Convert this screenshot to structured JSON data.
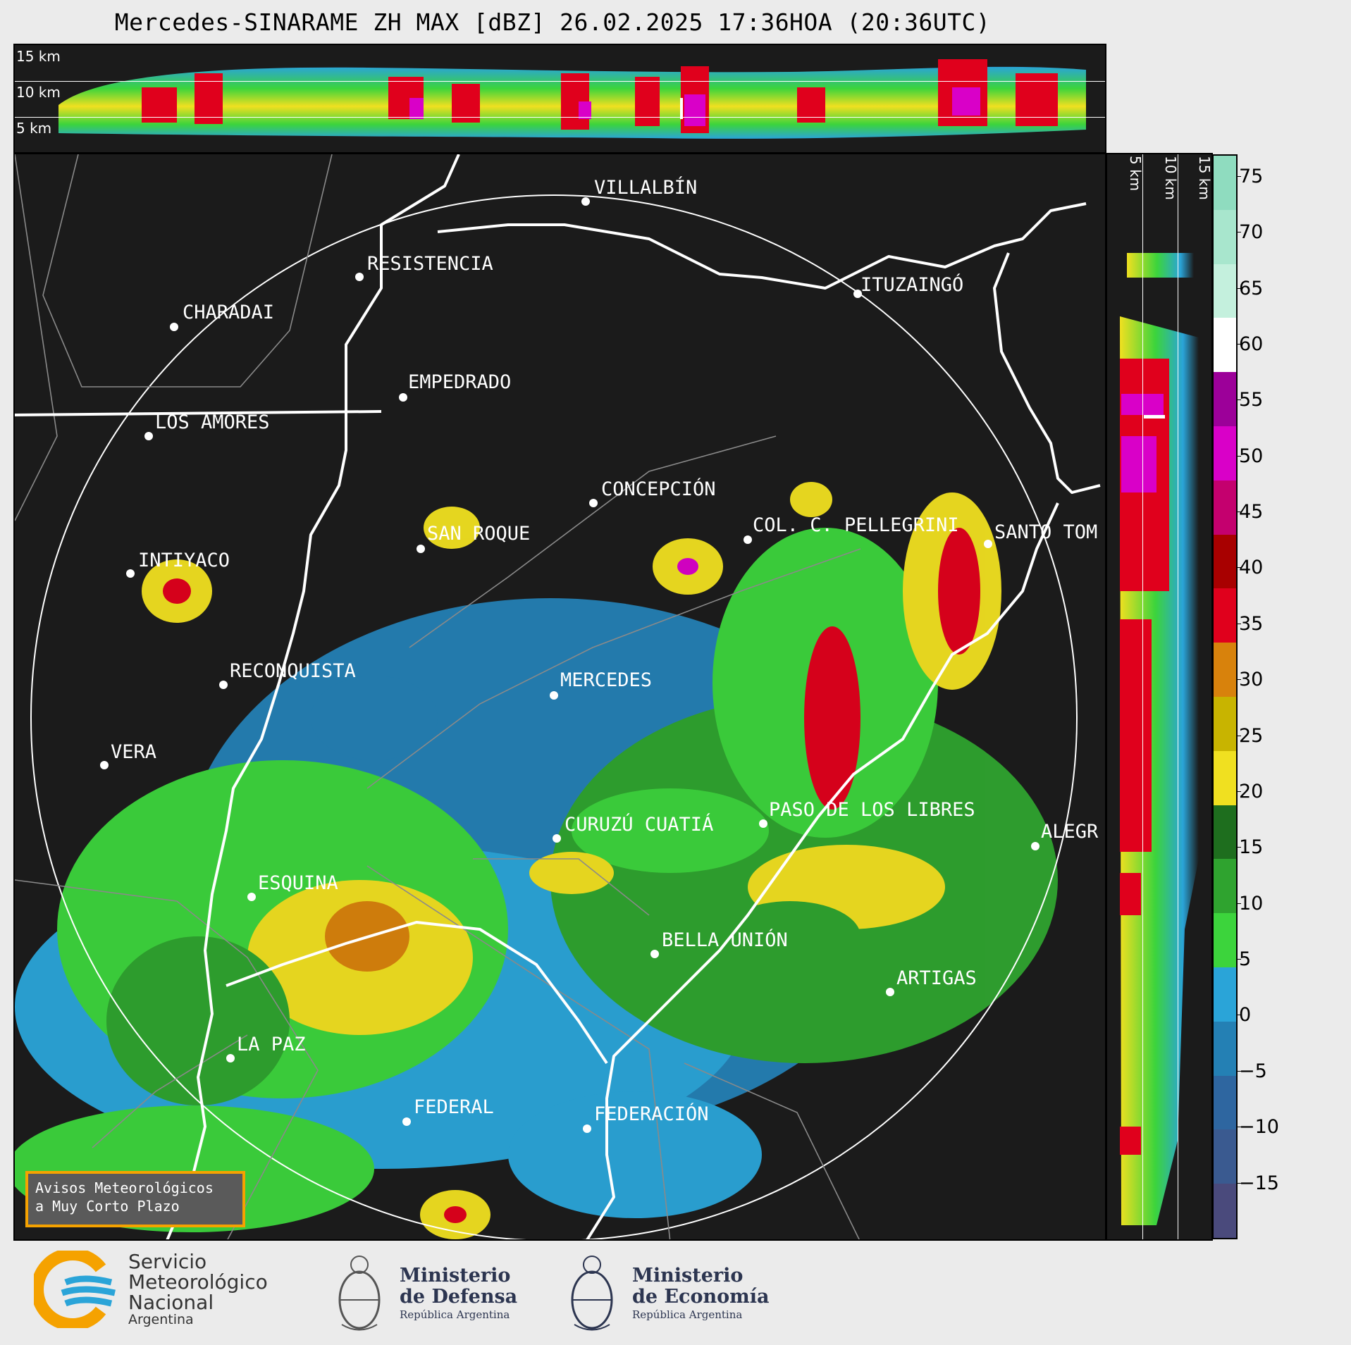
{
  "title": "Mercedes-SINARAME ZH MAX [dBZ] 26.02.2025 17:36HOA (20:36UTC)",
  "top_panel": {
    "height_labels": [
      "15 km",
      "10 km",
      "5 km"
    ]
  },
  "side_panel": {
    "height_labels": [
      "5 km",
      "10 km",
      "15 km"
    ]
  },
  "map": {
    "cities": [
      {
        "name": "VILLALBÍN"
      },
      {
        "name": "RESISTENCIA"
      },
      {
        "name": "CHARADAI"
      },
      {
        "name": "ITUZAINGÓ"
      },
      {
        "name": "EMPEDRADO"
      },
      {
        "name": "LOS AMORES"
      },
      {
        "name": "CONCEPCIÓN"
      },
      {
        "name": "SAN ROQUE"
      },
      {
        "name": "COL. C. PELLEGRINI"
      },
      {
        "name": "SANTO TOM"
      },
      {
        "name": "INTIYACO"
      },
      {
        "name": "RECONQUISTA"
      },
      {
        "name": "MERCEDES"
      },
      {
        "name": "VERA"
      },
      {
        "name": "CURUZÚ CUATIÁ"
      },
      {
        "name": "PASO DE LOS LIBRES"
      },
      {
        "name": "ALEGR"
      },
      {
        "name": "ESQUINA"
      },
      {
        "name": "BELLA UNIÓN"
      },
      {
        "name": "ARTIGAS"
      },
      {
        "name": "LA PAZ"
      },
      {
        "name": "FEDERAL"
      },
      {
        "name": "FEDERACIÓN"
      }
    ]
  },
  "colorbar": {
    "ticks": [
      "75",
      "70",
      "65",
      "60",
      "55",
      "50",
      "45",
      "40",
      "35",
      "30",
      "25",
      "20",
      "15",
      "10",
      "5",
      "0",
      "−5",
      "−10",
      "−15"
    ],
    "colors": [
      "#8fdcbf",
      "#a8e6cd",
      "#c4f0dd",
      "#ffffff",
      "#9c0099",
      "#d900c8",
      "#c4006e",
      "#a80000",
      "#e0001c",
      "#d8820c",
      "#c8b400",
      "#f0e020",
      "#1e6e1e",
      "#2fa32f",
      "#3cd43c",
      "#2aa4d8",
      "#2480b4",
      "#2e66a0",
      "#3a5a90",
      "#4a4a7c"
    ],
    "range": [
      -20,
      77
    ]
  },
  "notice": {
    "line1": "Avisos Meteorológicos",
    "line2": "a Muy Corto Plazo"
  },
  "footer": {
    "smn": {
      "line1": "Servicio",
      "line2": "Meteorológico",
      "line3": "Nacional",
      "line4": "Argentina"
    },
    "defensa": {
      "line1": "Ministerio",
      "line2": "de Defensa",
      "line3": "República Argentina"
    },
    "economia": {
      "line1": "Ministerio",
      "line2": "de Economía",
      "line3": "República Argentina"
    }
  }
}
